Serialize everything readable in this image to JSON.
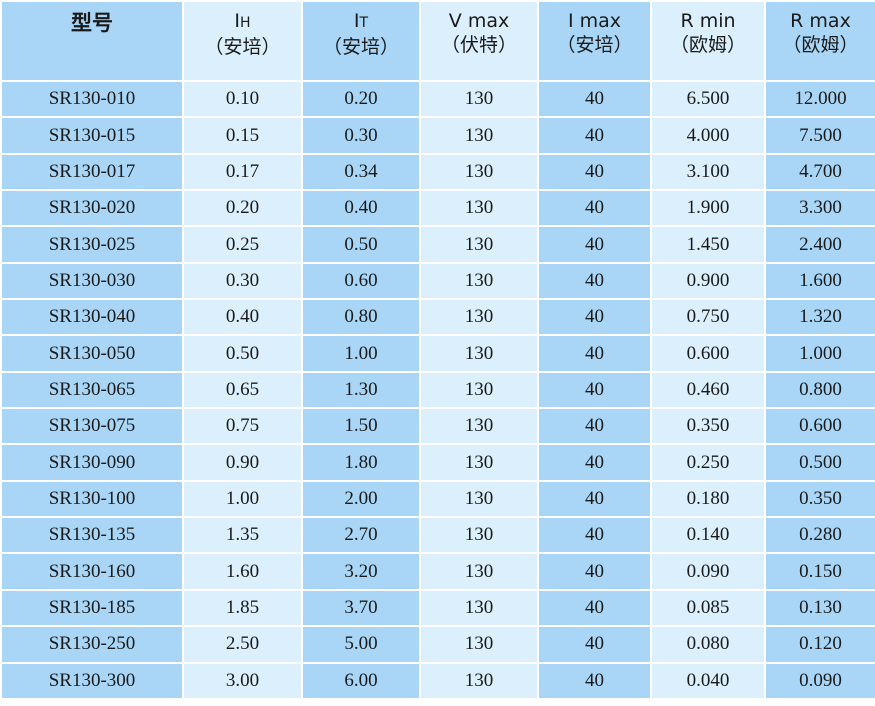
{
  "header": {
    "model": "型号",
    "ih": {
      "main": "I",
      "sub": "H",
      "unit": "（安培）"
    },
    "it": {
      "main": "I",
      "sub": "T",
      "unit": "（安培）"
    },
    "vmax": {
      "main": "V max",
      "unit": "（伏特）"
    },
    "imax": {
      "main": "I max",
      "unit": "（安培）"
    },
    "rmin": {
      "main": "R min",
      "unit": "（欧姆）"
    },
    "rmax": {
      "main": "R max",
      "unit": "（欧姆）"
    }
  },
  "rows": [
    [
      "SR130-010",
      "0.10",
      "0.20",
      "130",
      "40",
      "6.500",
      "12.000"
    ],
    [
      "SR130-015",
      "0.15",
      "0.30",
      "130",
      "40",
      "4.000",
      "7.500"
    ],
    [
      "SR130-017",
      "0.17",
      "0.34",
      "130",
      "40",
      "3.100",
      "4.700"
    ],
    [
      "SR130-020",
      "0.20",
      "0.40",
      "130",
      "40",
      "1.900",
      "3.300"
    ],
    [
      "SR130-025",
      "0.25",
      "0.50",
      "130",
      "40",
      "1.450",
      "2.400"
    ],
    [
      "SR130-030",
      "0.30",
      "0.60",
      "130",
      "40",
      "0.900",
      "1.600"
    ],
    [
      "SR130-040",
      "0.40",
      "0.80",
      "130",
      "40",
      "0.750",
      "1.320"
    ],
    [
      "SR130-050",
      "0.50",
      "1.00",
      "130",
      "40",
      "0.600",
      "1.000"
    ],
    [
      "SR130-065",
      "0.65",
      "1.30",
      "130",
      "40",
      "0.460",
      "0.800"
    ],
    [
      "SR130-075",
      "0.75",
      "1.50",
      "130",
      "40",
      "0.350",
      "0.600"
    ],
    [
      "SR130-090",
      "0.90",
      "1.80",
      "130",
      "40",
      "0.250",
      "0.500"
    ],
    [
      "SR130-100",
      "1.00",
      "2.00",
      "130",
      "40",
      "0.180",
      "0.350"
    ],
    [
      "SR130-135",
      "1.35",
      "2.70",
      "130",
      "40",
      "0.140",
      "0.280"
    ],
    [
      "SR130-160",
      "1.60",
      "3.20",
      "130",
      "40",
      "0.090",
      "0.150"
    ],
    [
      "SR130-185",
      "1.85",
      "3.70",
      "130",
      "40",
      "0.085",
      "0.130"
    ],
    [
      "SR130-250",
      "2.50",
      "5.00",
      "130",
      "40",
      "0.080",
      "0.120"
    ],
    [
      "SR130-300",
      "3.00",
      "6.00",
      "130",
      "40",
      "0.040",
      "0.090"
    ]
  ],
  "colors": {
    "dark_cell": "#a9d6f6",
    "light_cell": "#dbeffc",
    "grid": "#ffffff"
  }
}
